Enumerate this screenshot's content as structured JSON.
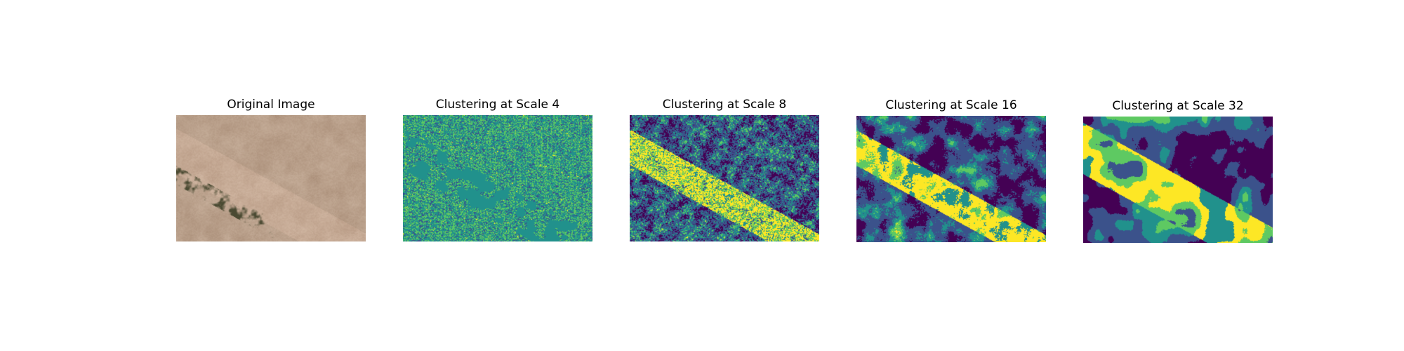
{
  "figure": {
    "panels": [
      {
        "title": "Original Image",
        "kind": "photo"
      },
      {
        "title": "Clustering at Scale 4",
        "kind": "cluster",
        "scale": 4
      },
      {
        "title": "Clustering at Scale 8",
        "kind": "cluster",
        "scale": 8
      },
      {
        "title": "Clustering at Scale 16",
        "kind": "cluster",
        "scale": 16
      },
      {
        "title": "Clustering at Scale 32",
        "kind": "cluster",
        "scale": 32
      }
    ],
    "colormap": [
      "#440154",
      "#3b528b",
      "#21918c",
      "#5ec962",
      "#fde725"
    ],
    "photo_colors": {
      "sand_light": "#cbb4a0",
      "sand_dark": "#a88c76",
      "vegetation": "#4a4a32"
    }
  }
}
